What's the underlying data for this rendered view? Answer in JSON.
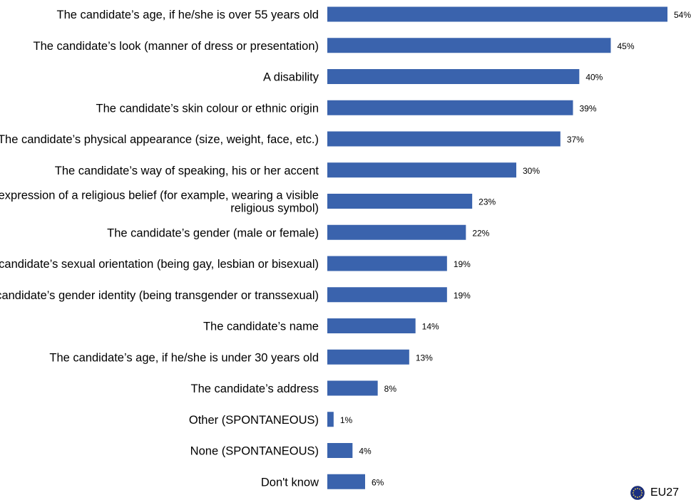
{
  "chart_data": {
    "type": "bar",
    "orientation": "horizontal",
    "categories": [
      "The candidate’s age, if he/she is over 55 years old",
      "The candidate’s look (manner of dress or presentation)",
      "A disability",
      "The candidate’s skin colour or ethnic origin",
      "The candidate’s physical appearance (size, weight, face, etc.)",
      "The candidate’s way of speaking, his or her accent",
      [
        "The expression of a religious belief (for example, wearing a visible",
        "religious symbol)"
      ],
      "The candidate’s gender (male or female)",
      "The candidate’s sexual orientation (being gay, lesbian or bisexual)",
      "The candidate’s gender identity (being transgender or transsexual)",
      "The candidate’s name",
      "The candidate’s age, if he/she is under 30 years old",
      "The candidate’s address",
      "Other (SPONTANEOUS)",
      "None (SPONTANEOUS)",
      "Don't know"
    ],
    "values": [
      54,
      45,
      40,
      39,
      37,
      30,
      23,
      22,
      19,
      19,
      14,
      13,
      8,
      1,
      4,
      6
    ],
    "value_labels": [
      "54%",
      "45%",
      "40%",
      "39%",
      "37%",
      "30%",
      "23%",
      "22%",
      "19%",
      "19%",
      "14%",
      "13%",
      "8%",
      "1%",
      "4%",
      "6%"
    ],
    "xlim": [
      0,
      54
    ],
    "grid": false,
    "bar_color": "#3a63ad",
    "legend": {
      "label": "EU27",
      "icon": "eu-flag-icon",
      "placement": "bottom-right"
    }
  }
}
